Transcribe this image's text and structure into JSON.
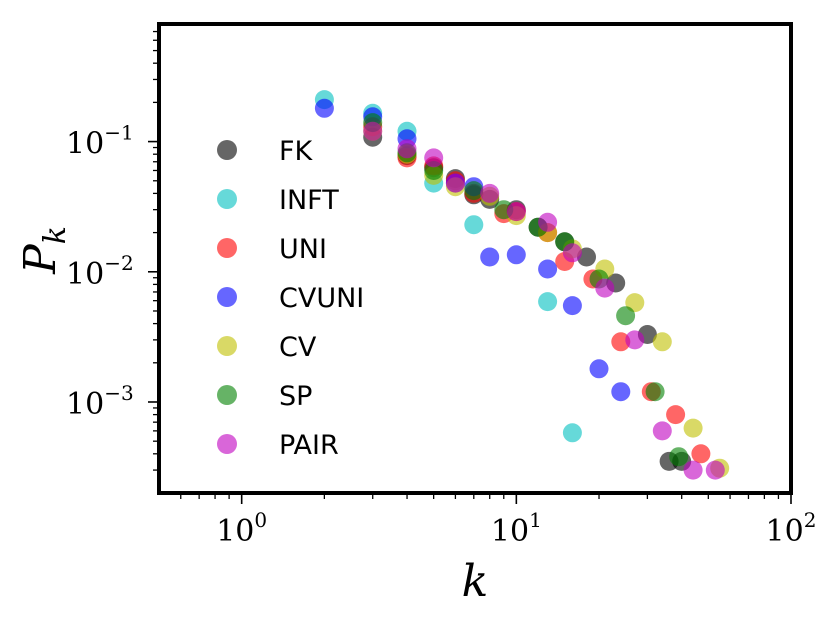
{
  "chart_data": {
    "type": "scatter",
    "title": "",
    "xlabel": "k",
    "ylabel": "P",
    "ylabel_sub": "k",
    "xscale": "log",
    "yscale": "log",
    "xlim": [
      0.5,
      100
    ],
    "ylim": [
      0.0002,
      0.8
    ],
    "grid": false,
    "legend_position": "left",
    "x_ticks": [
      {
        "value": 1,
        "base": "10",
        "exp": "0"
      },
      {
        "value": 10,
        "base": "10",
        "exp": "1"
      },
      {
        "value": 100,
        "base": "10",
        "exp": "2"
      }
    ],
    "y_ticks": [
      {
        "value": 0.1,
        "base": "10",
        "exp": "−1"
      },
      {
        "value": 0.01,
        "base": "10",
        "exp": "−2"
      },
      {
        "value": 0.001,
        "base": "10",
        "exp": "−3"
      }
    ],
    "series": [
      {
        "name": "FK",
        "color": "#000000",
        "points": [
          [
            3,
            0.108
          ],
          [
            4,
            0.078
          ],
          [
            5,
            0.063
          ],
          [
            6,
            0.052
          ],
          [
            7,
            0.039
          ],
          [
            8,
            0.036
          ],
          [
            10,
            0.03
          ],
          [
            12,
            0.022
          ],
          [
            15,
            0.017
          ],
          [
            18,
            0.013
          ],
          [
            23,
            0.0082
          ],
          [
            30,
            0.0033
          ],
          [
            36,
            0.00035
          ],
          [
            40,
            0.00035
          ]
        ]
      },
      {
        "name": "INFT",
        "color": "#00bfbf",
        "points": [
          [
            2,
            0.21
          ],
          [
            3,
            0.165
          ],
          [
            4,
            0.12
          ],
          [
            5,
            0.048
          ],
          [
            7,
            0.023
          ],
          [
            13,
            0.0059
          ],
          [
            16,
            0.00058
          ]
        ]
      },
      {
        "name": "UNI",
        "color": "#ff0000",
        "points": [
          [
            3,
            0.13
          ],
          [
            4,
            0.075
          ],
          [
            5,
            0.065
          ],
          [
            6,
            0.05
          ],
          [
            7,
            0.04
          ],
          [
            9,
            0.028
          ],
          [
            10,
            0.029
          ],
          [
            13,
            0.02
          ],
          [
            15,
            0.012
          ],
          [
            19,
            0.0088
          ],
          [
            24,
            0.0029
          ],
          [
            31,
            0.0012
          ],
          [
            38,
            0.0008
          ],
          [
            47,
            0.0004
          ]
        ]
      },
      {
        "name": "CVUNI",
        "color": "#0000ff",
        "points": [
          [
            2,
            0.18
          ],
          [
            3,
            0.155
          ],
          [
            4,
            0.105
          ],
          [
            6,
            0.048
          ],
          [
            7,
            0.045
          ],
          [
            8,
            0.013
          ],
          [
            10,
            0.0135
          ],
          [
            13,
            0.0105
          ],
          [
            16,
            0.0055
          ],
          [
            20,
            0.0018
          ],
          [
            24,
            0.0012
          ]
        ]
      },
      {
        "name": "CV",
        "color": "#bfbf00",
        "points": [
          [
            3,
            0.12
          ],
          [
            4,
            0.08
          ],
          [
            5,
            0.055
          ],
          [
            6,
            0.045
          ],
          [
            8,
            0.038
          ],
          [
            10,
            0.027
          ],
          [
            13,
            0.02
          ],
          [
            16,
            0.015
          ],
          [
            21,
            0.0105
          ],
          [
            27,
            0.0058
          ],
          [
            34,
            0.0029
          ],
          [
            44,
            0.00063
          ],
          [
            55,
            0.00031
          ]
        ]
      },
      {
        "name": "SP",
        "color": "#008000",
        "points": [
          [
            3,
            0.14
          ],
          [
            4,
            0.082
          ],
          [
            5,
            0.06
          ],
          [
            7,
            0.042
          ],
          [
            9,
            0.03
          ],
          [
            12,
            0.022
          ],
          [
            15,
            0.017
          ],
          [
            20,
            0.0088
          ],
          [
            25,
            0.0046
          ],
          [
            32,
            0.0012
          ],
          [
            39,
            0.00038
          ]
        ]
      },
      {
        "name": "PAIR",
        "color": "#bf00bf",
        "points": [
          [
            3,
            0.12
          ],
          [
            4,
            0.088
          ],
          [
            5,
            0.075
          ],
          [
            6,
            0.048
          ],
          [
            8,
            0.04
          ],
          [
            10,
            0.029
          ],
          [
            13,
            0.024
          ],
          [
            16,
            0.014
          ],
          [
            21,
            0.0075
          ],
          [
            27,
            0.003
          ],
          [
            34,
            0.0006
          ],
          [
            44,
            0.0003
          ],
          [
            53,
            0.0003
          ]
        ]
      }
    ]
  }
}
